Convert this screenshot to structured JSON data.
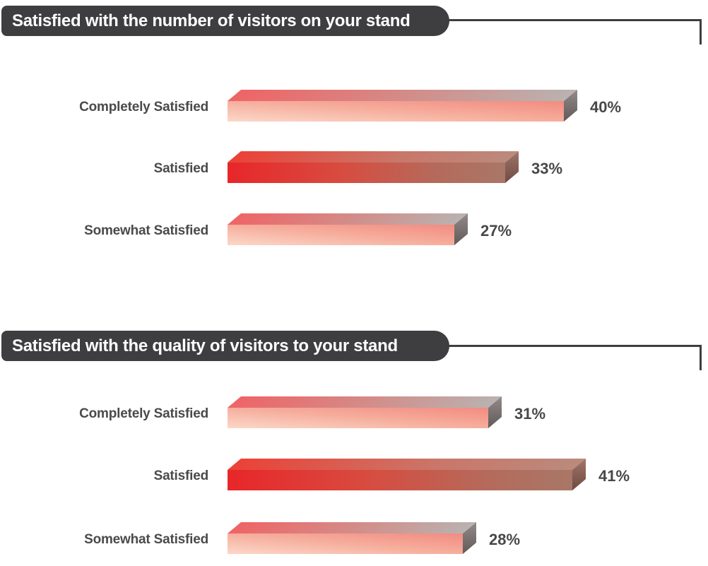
{
  "chart_data": [
    {
      "type": "bar",
      "orientation": "horizontal",
      "title": "Satisfied with the number of visitors on your stand",
      "categories": [
        "Completely Satisfied",
        "Satisfied",
        "Somewhat Satisfied"
      ],
      "values": [
        40,
        33,
        27
      ],
      "value_labels": [
        "40%",
        "33%",
        "27%"
      ],
      "xlim": [
        0,
        50
      ],
      "grid": false,
      "legend": false
    },
    {
      "type": "bar",
      "orientation": "horizontal",
      "title": "Satisfied with the quality of visitors to your stand",
      "categories": [
        "Completely Satisfied",
        "Satisfied",
        "Somewhat Satisfied"
      ],
      "values": [
        31,
        41,
        28
      ],
      "value_labels": [
        "31%",
        "41%",
        "28%"
      ],
      "xlim": [
        0,
        50
      ],
      "grid": false,
      "legend": false
    }
  ],
  "colors": {
    "header_bg": "#3e3d40",
    "header_text": "#ffffff",
    "connector_line": "#3e3d40",
    "category_text": "#4a494b",
    "value_text": "#48474a",
    "bar_red_start": "#e8262a",
    "bar_red_end": "#a97767",
    "bar_pink_start": "#f28b80",
    "bar_pink_end": "#fbd8c9",
    "bar_top_gray": "#b9b2b1",
    "bar_side_gray": "#5f5958",
    "bar_side_maroon": "#6f4a42"
  }
}
